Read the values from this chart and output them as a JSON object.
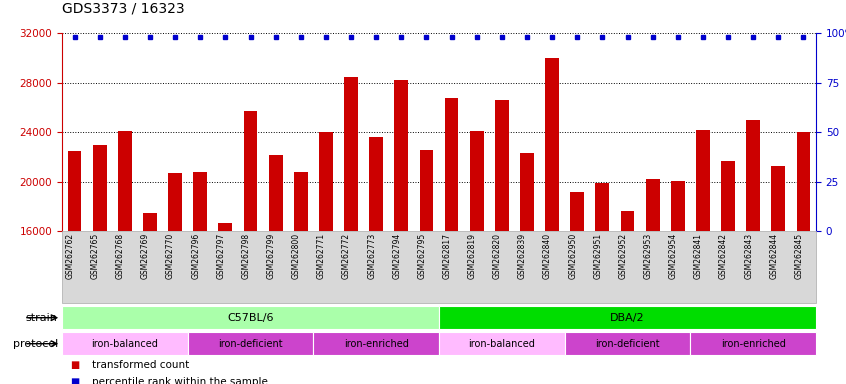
{
  "title": "GDS3373 / 16323",
  "samples": [
    "GSM262762",
    "GSM262765",
    "GSM262768",
    "GSM262769",
    "GSM262770",
    "GSM262796",
    "GSM262797",
    "GSM262798",
    "GSM262799",
    "GSM262800",
    "GSM262771",
    "GSM262772",
    "GSM262773",
    "GSM262794",
    "GSM262795",
    "GSM262817",
    "GSM262819",
    "GSM262820",
    "GSM262839",
    "GSM262840",
    "GSM262950",
    "GSM262951",
    "GSM262952",
    "GSM262953",
    "GSM262954",
    "GSM262841",
    "GSM262842",
    "GSM262843",
    "GSM262844",
    "GSM262845"
  ],
  "bar_values": [
    22500,
    23000,
    24100,
    17500,
    20700,
    20800,
    16700,
    25700,
    22200,
    20800,
    24000,
    28500,
    23600,
    28200,
    22600,
    26800,
    24100,
    26600,
    22300,
    30000,
    19200,
    19900,
    17600,
    20200,
    20100,
    24200,
    21700,
    25000,
    21300,
    24000
  ],
  "bar_color": "#cc0000",
  "percentile_color": "#0000cc",
  "ylim_left": [
    16000,
    32000
  ],
  "ylim_right": [
    0,
    100
  ],
  "yticks_left": [
    16000,
    20000,
    24000,
    28000,
    32000
  ],
  "yticks_right": [
    0,
    25,
    50,
    75,
    100
  ],
  "strain_groups": [
    {
      "label": "C57BL/6",
      "start": 0,
      "end": 15,
      "color": "#aaffaa"
    },
    {
      "label": "DBA/2",
      "start": 15,
      "end": 30,
      "color": "#00dd00"
    }
  ],
  "protocol_groups": [
    {
      "label": "iron-balanced",
      "start": 0,
      "end": 5,
      "color": "#ffbbff"
    },
    {
      "label": "iron-deficient",
      "start": 5,
      "end": 10,
      "color": "#dd44dd"
    },
    {
      "label": "iron-enriched",
      "start": 10,
      "end": 15,
      "color": "#dd44dd"
    },
    {
      "label": "iron-balanced",
      "start": 15,
      "end": 20,
      "color": "#ffbbff"
    },
    {
      "label": "iron-deficient",
      "start": 20,
      "end": 25,
      "color": "#dd44dd"
    },
    {
      "label": "iron-enriched",
      "start": 25,
      "end": 30,
      "color": "#dd44dd"
    }
  ],
  "legend_items": [
    {
      "label": "transformed count",
      "color": "#cc0000"
    },
    {
      "label": "percentile rank within the sample",
      "color": "#0000cc"
    }
  ],
  "background_color": "#ffffff",
  "xtick_bg": "#d8d8d8",
  "title_fontsize": 10,
  "bar_width": 0.55
}
